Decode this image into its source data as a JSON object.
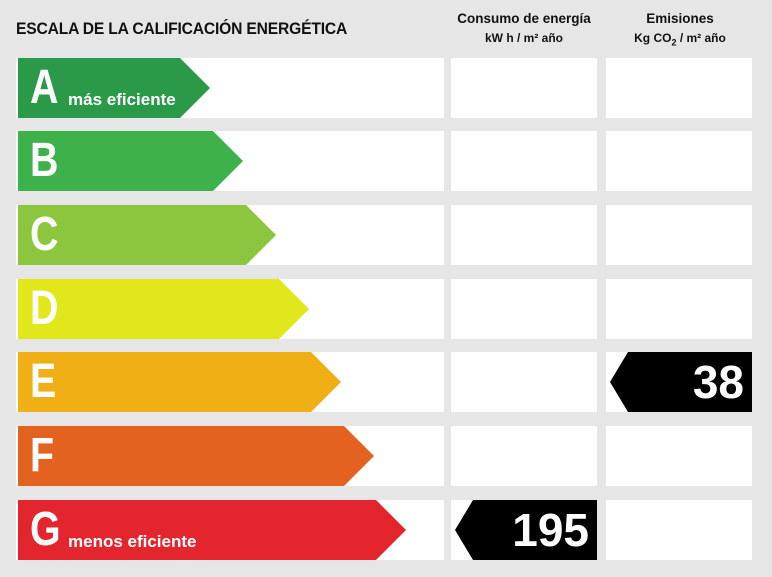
{
  "title": "ESCALA DE LA CALIFICACIÓN ENERGÉTICA",
  "consumption_header": {
    "line1": "Consumo de energía",
    "line2": "kW h / m² año"
  },
  "emissions_header": {
    "line1": "Emisiones",
    "line2_prefix": "Kg CO",
    "line2_sub": "2",
    "line2_suffix": " / m² año"
  },
  "ratings": [
    {
      "letter": "A",
      "sublabel": "más eficiente",
      "color": "#2a9a48"
    },
    {
      "letter": "B",
      "sublabel": "",
      "color": "#3db14a"
    },
    {
      "letter": "C",
      "sublabel": "",
      "color": "#8cc63f"
    },
    {
      "letter": "D",
      "sublabel": "",
      "color": "#e0e71b"
    },
    {
      "letter": "E",
      "sublabel": "",
      "color": "#f0af15"
    },
    {
      "letter": "F",
      "sublabel": "",
      "color": "#e4621f"
    },
    {
      "letter": "G",
      "sublabel": "menos eficiente",
      "color": "#e3262d"
    }
  ],
  "consumption": {
    "value": "195",
    "rating": "G"
  },
  "emissions": {
    "value": "38",
    "rating": "E"
  }
}
